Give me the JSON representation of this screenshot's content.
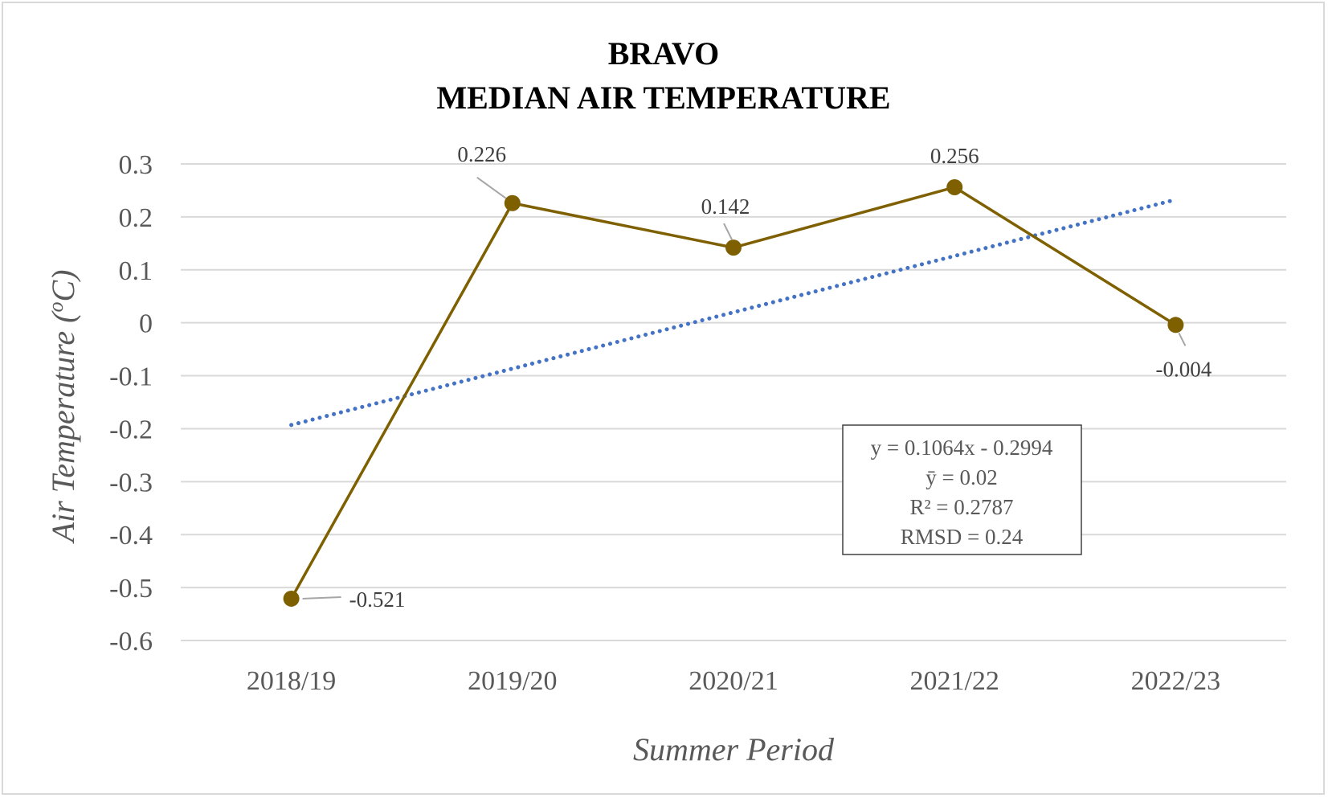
{
  "chart_data": {
    "type": "line",
    "title": [
      "BRAVO",
      "MEDIAN AIR TEMPERATURE"
    ],
    "xlabel": "Summer Period",
    "ylabel_main": "Air Temperature (",
    "ylabel_sup": "o",
    "ylabel_end": "C)",
    "categories": [
      "2018/19",
      "2019/20",
      "2020/21",
      "2021/22",
      "2022/23"
    ],
    "series": [
      {
        "values": [
          -0.521,
          0.226,
          0.142,
          0.256,
          -0.004
        ],
        "color": "#7f6000"
      }
    ],
    "data_labels": [
      "-0.521",
      "0.226",
      "0.142",
      "0.256",
      "-0.004"
    ],
    "trendline": {
      "slope": 0.1064,
      "intercept": -0.2994,
      "color": "#4472c4",
      "style": "dotted"
    },
    "ylim": [
      -0.6,
      0.3
    ],
    "yticks": [
      0.3,
      0.2,
      0.1,
      0,
      -0.1,
      -0.2,
      -0.3,
      -0.4,
      -0.5,
      -0.6
    ],
    "ytick_labels": [
      "0.3",
      "0.2",
      "0.1",
      "0",
      "-0.1",
      "-0.2",
      "-0.3",
      "-0.4",
      "-0.5",
      "-0.6"
    ],
    "grid": true,
    "stats_box": [
      "y = 0.1064x - 0.2994",
      "ȳ = 0.02",
      "R² = 0.2787",
      "RMSD = 0.24"
    ]
  }
}
